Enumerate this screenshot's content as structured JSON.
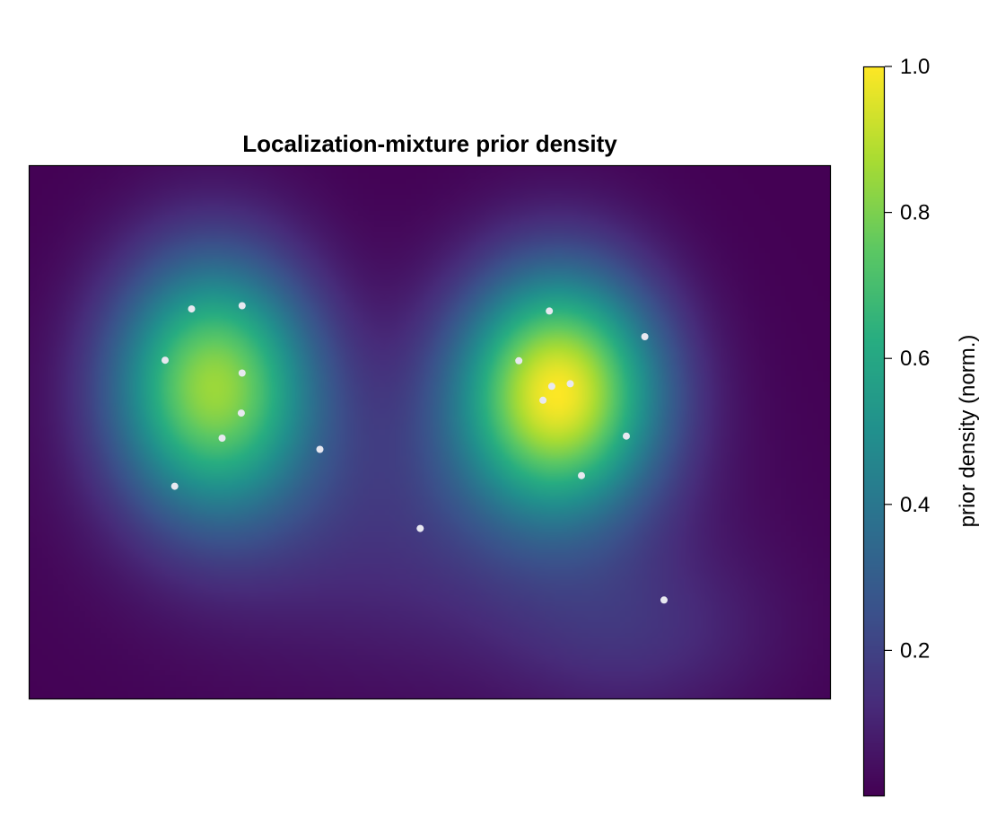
{
  "chart_data": {
    "type": "heatmap",
    "title": "Localization-mixture prior density",
    "xlabel": "",
    "ylabel": "",
    "x_range": [
      0,
      1
    ],
    "y_range": [
      0,
      1
    ],
    "axis_ticks": "none",
    "colormap": "viridis",
    "colorbar": {
      "label": "prior density (norm.)",
      "range": [
        0.0,
        1.0
      ],
      "ticks": [
        0.2,
        0.4,
        0.6,
        0.8,
        1.0
      ],
      "tick_labels": [
        "0.2",
        "0.4",
        "0.6",
        "0.8",
        "1.0"
      ],
      "placement": "right"
    },
    "density_components": [
      {
        "cx": 0.23,
        "cy": 0.59,
        "sx": 0.09,
        "sy": 0.17,
        "weight": 0.86
      },
      {
        "cx": 0.66,
        "cy": 0.58,
        "sx": 0.09,
        "sy": 0.16,
        "weight": 1.0
      },
      {
        "cx": 0.76,
        "cy": 0.12,
        "sx": 0.12,
        "sy": 0.12,
        "weight": 0.12
      },
      {
        "cx": 0.48,
        "cy": 0.33,
        "sx": 0.22,
        "sy": 0.2,
        "weight": 0.14
      }
    ],
    "scatter_points": {
      "color": "#e8e8f0",
      "points": [
        {
          "x": 0.203,
          "y": 0.731
        },
        {
          "x": 0.266,
          "y": 0.737
        },
        {
          "x": 0.17,
          "y": 0.635
        },
        {
          "x": 0.266,
          "y": 0.611
        },
        {
          "x": 0.265,
          "y": 0.536
        },
        {
          "x": 0.241,
          "y": 0.489
        },
        {
          "x": 0.363,
          "y": 0.468
        },
        {
          "x": 0.182,
          "y": 0.399
        },
        {
          "x": 0.488,
          "y": 0.32
        },
        {
          "x": 0.649,
          "y": 0.727
        },
        {
          "x": 0.768,
          "y": 0.679
        },
        {
          "x": 0.611,
          "y": 0.634
        },
        {
          "x": 0.652,
          "y": 0.586
        },
        {
          "x": 0.675,
          "y": 0.591
        },
        {
          "x": 0.641,
          "y": 0.56
        },
        {
          "x": 0.745,
          "y": 0.493
        },
        {
          "x": 0.689,
          "y": 0.419
        },
        {
          "x": 0.792,
          "y": 0.186
        }
      ]
    },
    "grid": false,
    "legend": "none"
  }
}
